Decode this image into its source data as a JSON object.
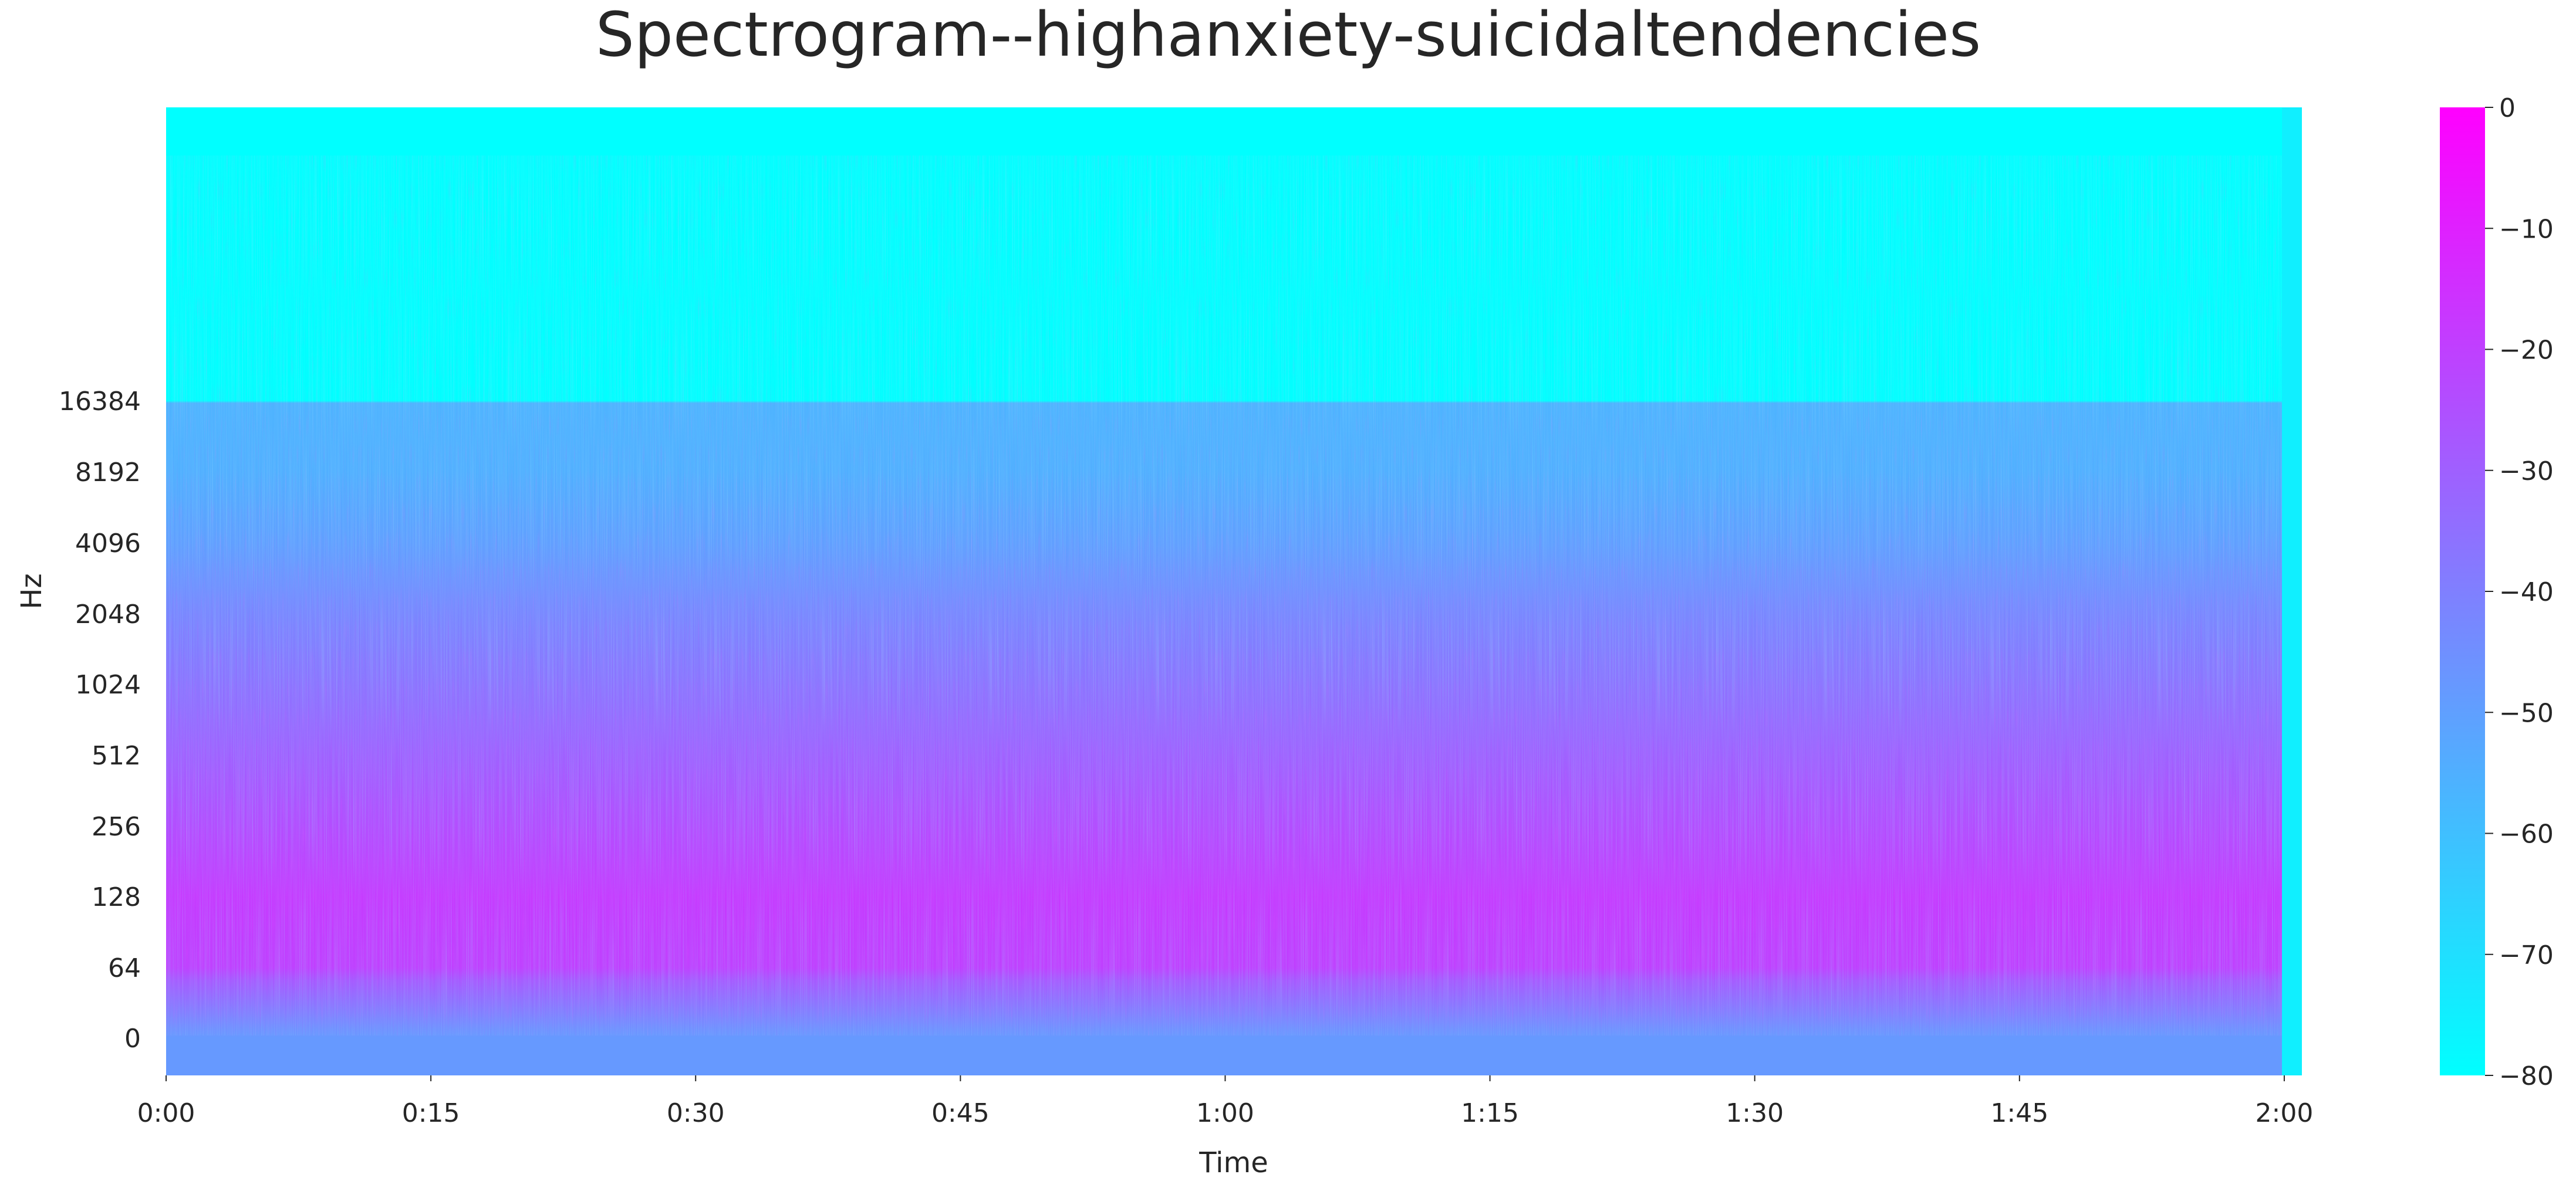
{
  "chart_data": {
    "type": "heatmap",
    "title": "Spectrogram--highanxiety-suicidaltendencies",
    "xlabel": "Time",
    "ylabel": "Hz",
    "x_ticks": [
      "0:00",
      "0:15",
      "0:30",
      "0:45",
      "1:00",
      "1:15",
      "1:30",
      "1:45",
      "2:00"
    ],
    "x_tick_seconds": [
      0,
      15,
      30,
      45,
      60,
      75,
      90,
      105,
      120
    ],
    "x_range_seconds": [
      0,
      121
    ],
    "y_scale": "log2",
    "y_ticks": [
      "0",
      "64",
      "128",
      "256",
      "512",
      "1024",
      "2048",
      "4096",
      "8192",
      "16384"
    ],
    "y_tick_values": [
      0,
      64,
      128,
      256,
      512,
      1024,
      2048,
      4096,
      8192,
      16384
    ],
    "y_range_hz": [
      0,
      22050
    ],
    "colormap": "cool",
    "colormap_colors": [
      "#00ffff",
      "#ff00ff"
    ],
    "colorbar_ticks": [
      "0",
      "−10",
      "−20",
      "−30",
      "−40",
      "−50",
      "−60",
      "−70",
      "−80"
    ],
    "colorbar_tick_values": [
      0,
      -10,
      -20,
      -30,
      -40,
      -50,
      -60,
      -70,
      -80
    ],
    "colorbar_range_db": [
      -80,
      0
    ],
    "freq_profile": [
      {
        "hz": 0,
        "db": -48
      },
      {
        "hz": 30,
        "db": -28
      },
      {
        "hz": 64,
        "db": -20
      },
      {
        "hz": 128,
        "db": -18
      },
      {
        "hz": 256,
        "db": -24
      },
      {
        "hz": 512,
        "db": -30
      },
      {
        "hz": 1024,
        "db": -36
      },
      {
        "hz": 2048,
        "db": -42
      },
      {
        "hz": 4096,
        "db": -50
      },
      {
        "hz": 8192,
        "db": -55
      },
      {
        "hz": 16000,
        "db": -56
      },
      {
        "hz": 16384,
        "db": -80
      },
      {
        "hz": 22050,
        "db": -80
      }
    ],
    "grid": false,
    "legend": "colorbar-right"
  }
}
